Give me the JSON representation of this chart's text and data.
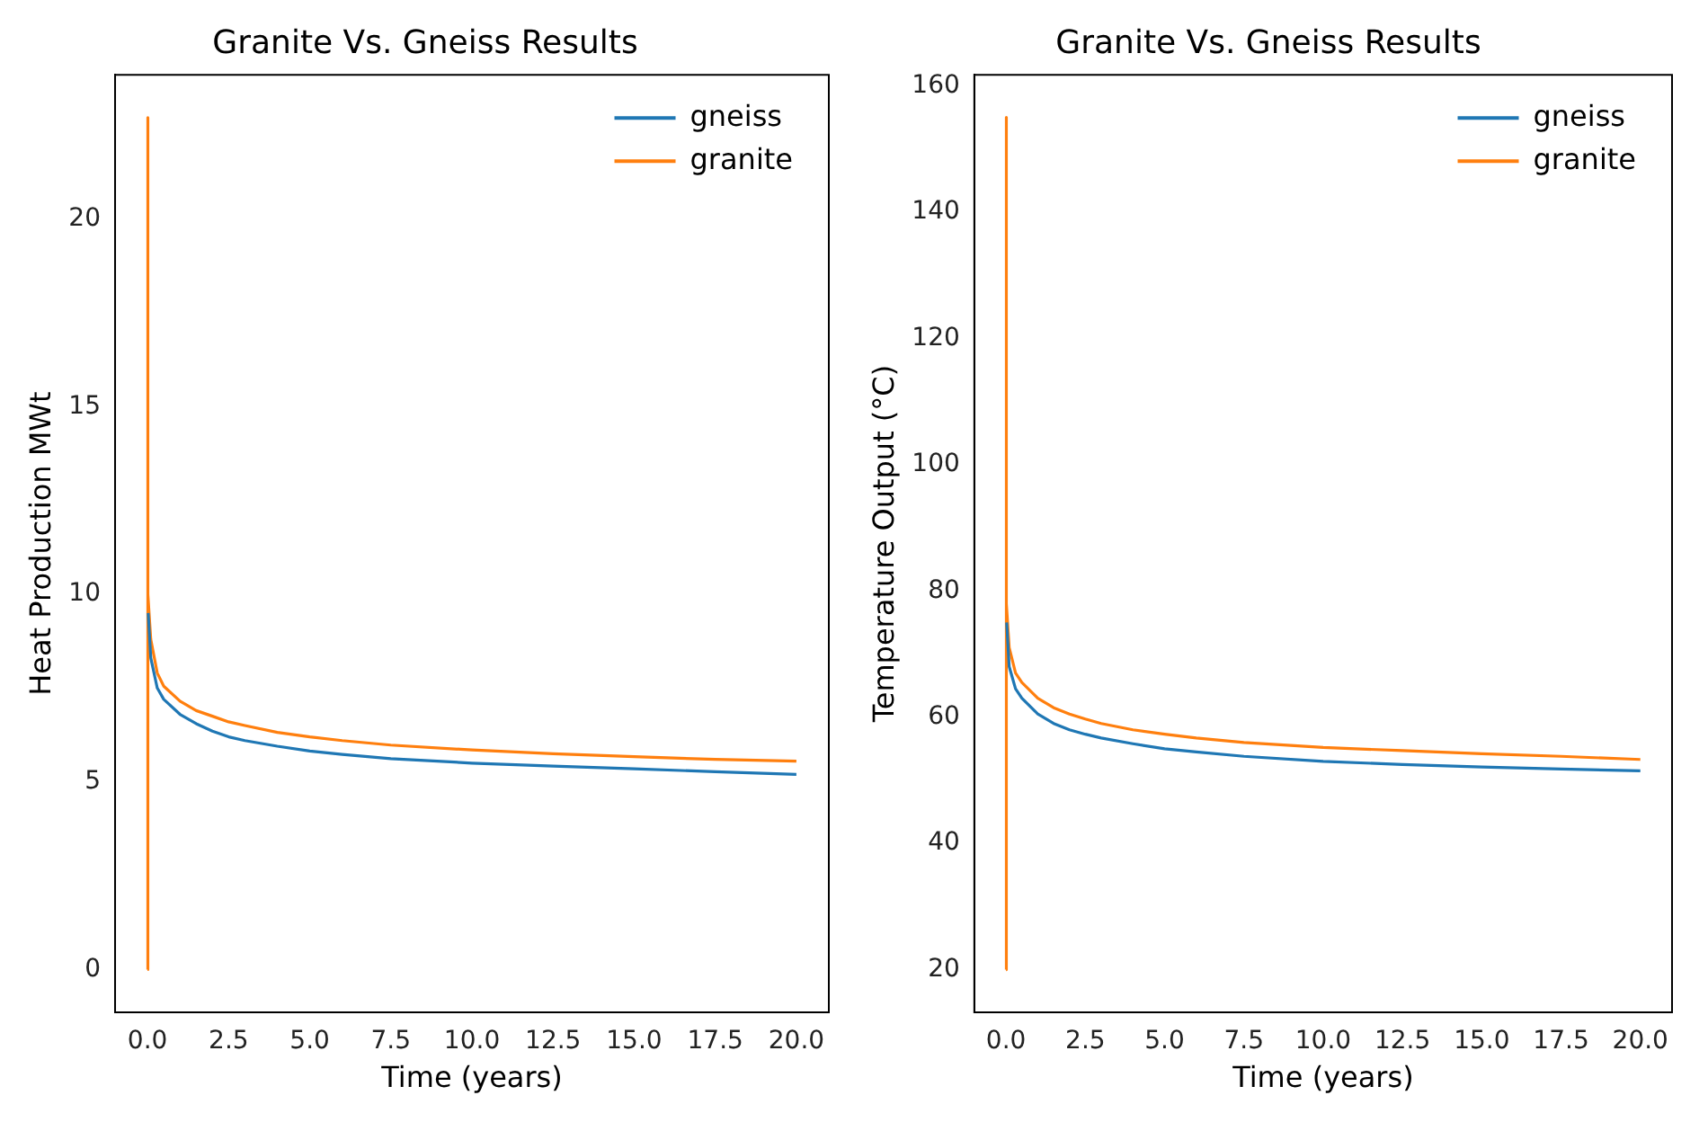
{
  "chart_data": [
    {
      "type": "line",
      "title": "Granite Vs. Gneiss Results",
      "xlabel": "Time (years)",
      "ylabel": "Heat Production MWt",
      "xlim": [
        -1,
        21
      ],
      "xticks": [
        {
          "value": 0,
          "label": "0.0"
        },
        {
          "value": 2.5,
          "label": "2.5"
        },
        {
          "value": 5,
          "label": "5.0"
        },
        {
          "value": 7.5,
          "label": "7.5"
        },
        {
          "value": 10,
          "label": "10.0"
        },
        {
          "value": 12.5,
          "label": "12.5"
        },
        {
          "value": 15,
          "label": "15.0"
        },
        {
          "value": 17.5,
          "label": "17.5"
        },
        {
          "value": 20,
          "label": "20.0"
        }
      ],
      "ylim": [
        -1.14,
        23.84
      ],
      "yticks": [
        0,
        5,
        10,
        15,
        20
      ],
      "grid": false,
      "legend": "top right",
      "marker": "none",
      "line_style": "solid",
      "series": [
        {
          "name": "gneiss",
          "color": "#1f77b4",
          "x": [
            0.02,
            0.1,
            0.3,
            0.5,
            1,
            1.5,
            2,
            2.5,
            3,
            4,
            5,
            6,
            7.5,
            10,
            12.5,
            15,
            17.5,
            20
          ],
          "values": [
            9.5,
            8.3,
            7.5,
            7.2,
            6.8,
            6.55,
            6.35,
            6.2,
            6.1,
            5.95,
            5.82,
            5.73,
            5.62,
            5.5,
            5.42,
            5.35,
            5.27,
            5.2
          ]
        },
        {
          "name": "granite",
          "color": "#ff7f0e",
          "x": [
            0,
            0,
            0.02,
            0.1,
            0.3,
            0.5,
            1,
            1.5,
            2,
            2.5,
            3,
            4,
            5,
            6,
            7.5,
            10,
            12.5,
            15,
            17.5,
            20
          ],
          "values": [
            0,
            22.7,
            10,
            8.8,
            7.9,
            7.55,
            7.15,
            6.9,
            6.75,
            6.6,
            6.5,
            6.32,
            6.2,
            6.1,
            5.98,
            5.85,
            5.75,
            5.67,
            5.6,
            5.55
          ]
        }
      ]
    },
    {
      "type": "line",
      "title": "Granite Vs. Gneiss Results",
      "xlabel": "Time (years)",
      "ylabel": "Temperature Output (°C)",
      "xlim": [
        -1,
        21
      ],
      "xticks": [
        {
          "value": 0,
          "label": "0.0"
        },
        {
          "value": 2.5,
          "label": "2.5"
        },
        {
          "value": 5,
          "label": "5.0"
        },
        {
          "value": 7.5,
          "label": "7.5"
        },
        {
          "value": 10,
          "label": "10.0"
        },
        {
          "value": 12.5,
          "label": "12.5"
        },
        {
          "value": 15,
          "label": "15.0"
        },
        {
          "value": 17.5,
          "label": "17.5"
        },
        {
          "value": 20,
          "label": "20.0"
        }
      ],
      "ylim": [
        13.25,
        161.75
      ],
      "yticks": [
        20,
        40,
        60,
        80,
        100,
        120,
        140,
        160
      ],
      "grid": false,
      "legend": "top right",
      "marker": "none",
      "line_style": "solid",
      "series": [
        {
          "name": "gneiss",
          "color": "#1f77b4",
          "x": [
            0.02,
            0.1,
            0.3,
            0.5,
            1,
            1.5,
            2,
            2.5,
            3,
            4,
            5,
            6,
            7.5,
            10,
            12.5,
            15,
            17.5,
            20
          ],
          "values": [
            75,
            68,
            64.5,
            63,
            60.5,
            59,
            58,
            57.3,
            56.7,
            55.8,
            55,
            54.5,
            53.8,
            53,
            52.5,
            52.1,
            51.8,
            51.5
          ]
        },
        {
          "name": "granite",
          "color": "#ff7f0e",
          "x": [
            0,
            0,
            0.02,
            0.1,
            0.3,
            0.5,
            1,
            1.5,
            2,
            2.5,
            3,
            4,
            5,
            6,
            7.5,
            10,
            12.5,
            15,
            17.5,
            20
          ],
          "values": [
            20,
            155,
            78,
            71,
            67,
            65.5,
            63,
            61.5,
            60.5,
            59.7,
            59,
            58,
            57.3,
            56.7,
            56,
            55.2,
            54.7,
            54.2,
            53.8,
            53.3
          ]
        }
      ]
    }
  ]
}
